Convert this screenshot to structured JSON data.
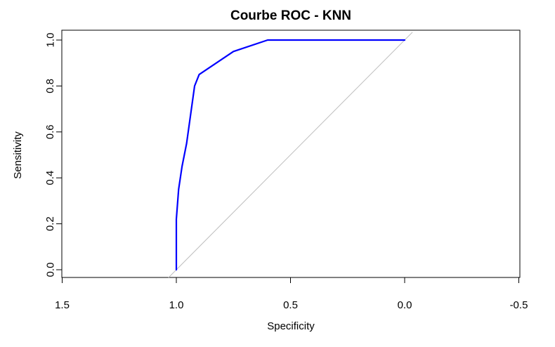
{
  "chart_data": {
    "type": "line",
    "title": "Courbe ROC - KNN",
    "xlabel": "Specificity",
    "ylabel": "Sensitivity",
    "xlim": [
      1.5,
      -0.5
    ],
    "ylim": [
      0.0,
      1.0
    ],
    "x_reversed": true,
    "xticks": [
      "1.5",
      "1.0",
      "0.5",
      "0.0",
      "-0.5"
    ],
    "yticks": [
      "0.0",
      "0.2",
      "0.4",
      "0.6",
      "0.8",
      "1.0"
    ],
    "grid": false,
    "legend": "none",
    "series": [
      {
        "color": "#0000ff",
        "x": [
          1.0,
          1.0,
          1.0,
          0.99,
          0.975,
          0.955,
          0.92,
          0.9,
          0.75,
          0.6,
          0.0
        ],
        "y": [
          0.0,
          0.1,
          0.22,
          0.35,
          0.45,
          0.55,
          0.8,
          0.85,
          0.95,
          1.0,
          1.0
        ]
      }
    ],
    "reference_line": {
      "color": "#bebebe",
      "x": [
        1.0,
        0.0
      ],
      "y": [
        0.0,
        1.0
      ]
    }
  }
}
